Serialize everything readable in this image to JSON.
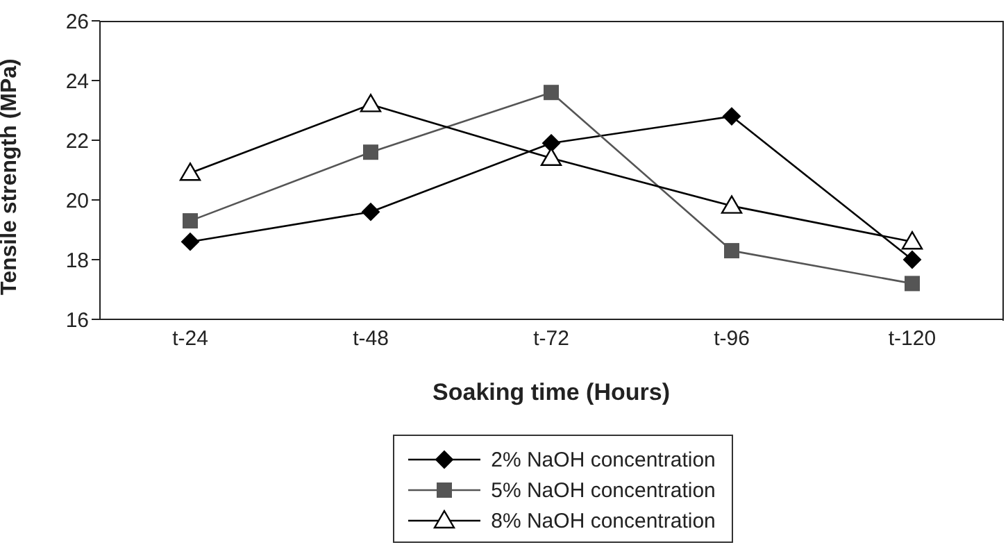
{
  "chart_data": {
    "type": "line",
    "xlabel": "Soaking time (Hours)",
    "ylabel": "Tensile strength (MPa)",
    "categories": [
      "t-24",
      "t-48",
      "t-72",
      "t-96",
      "t-120"
    ],
    "ylim": [
      16,
      26
    ],
    "yticks": [
      16,
      18,
      20,
      22,
      24,
      26
    ],
    "grid": false,
    "legend": "bottom",
    "series": [
      {
        "name": "2% NaOH concentration",
        "color": "#000000",
        "marker": "diamond",
        "values": [
          18.6,
          19.6,
          21.9,
          22.8,
          18.0
        ]
      },
      {
        "name": "5% NaOH concentration",
        "color": "#555555",
        "marker": "square",
        "values": [
          19.3,
          21.6,
          23.6,
          18.3,
          17.2
        ]
      },
      {
        "name": "8% NaOH concentration",
        "color": "#000000",
        "marker": "triangle",
        "values": [
          20.9,
          23.2,
          21.4,
          19.8,
          18.6
        ]
      }
    ]
  }
}
